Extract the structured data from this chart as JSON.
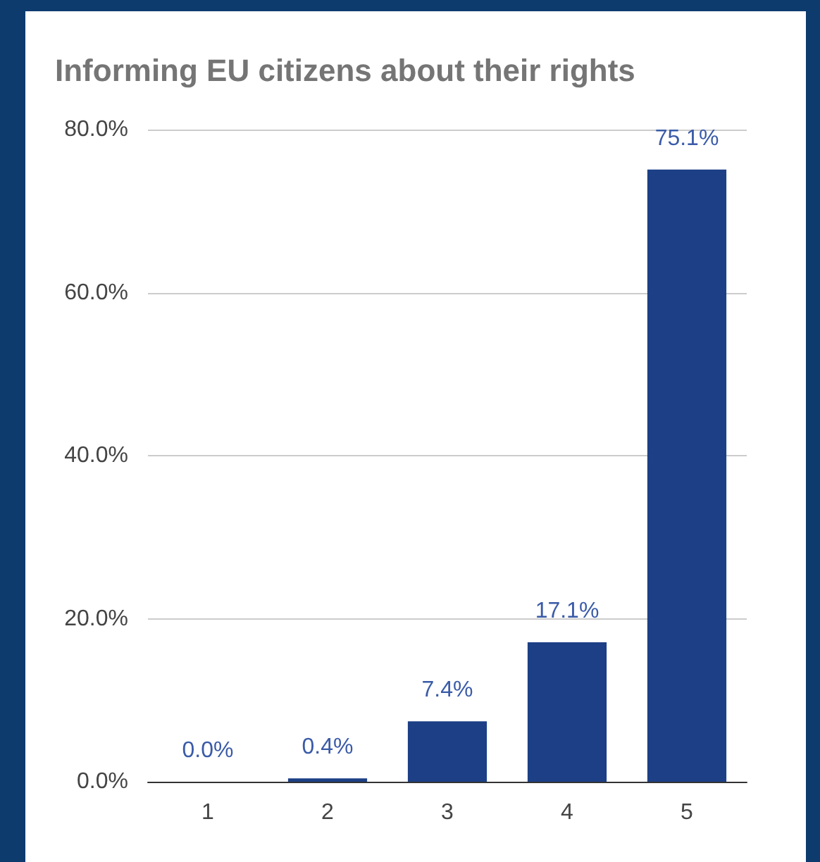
{
  "chart_data": {
    "type": "bar",
    "title": "Informing EU citizens about their rights",
    "categories": [
      "1",
      "2",
      "3",
      "4",
      "5"
    ],
    "values": [
      0.0,
      0.4,
      7.4,
      17.1,
      75.1
    ],
    "value_labels": [
      "0.0%",
      "0.4%",
      "7.4%",
      "17.1%",
      "75.1%"
    ],
    "color": "#1c3f86",
    "ylim": [
      0,
      80
    ],
    "yticks": [
      {
        "value": 0,
        "label": "0.0%"
      },
      {
        "value": 20,
        "label": "20.0%"
      },
      {
        "value": 40,
        "label": "40.0%"
      },
      {
        "value": 60,
        "label": "60.0%"
      },
      {
        "value": 80,
        "label": "80.0%"
      }
    ],
    "grid": "y"
  }
}
